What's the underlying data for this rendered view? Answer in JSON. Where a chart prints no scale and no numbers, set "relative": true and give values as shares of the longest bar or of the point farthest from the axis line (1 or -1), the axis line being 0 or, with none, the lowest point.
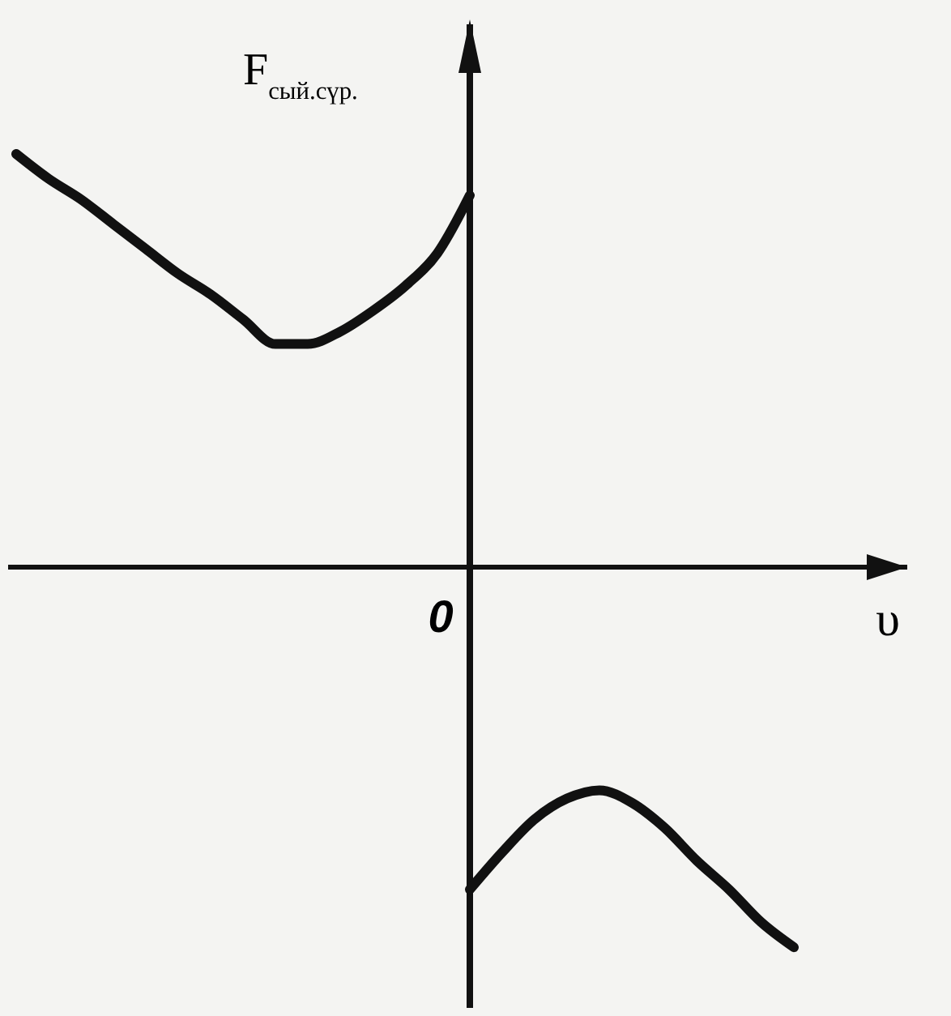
{
  "chart_data": {
    "type": "line",
    "relative": true,
    "annotations": [
      "0"
    ],
    "xlabel": "υ",
    "ylabel": "F$_{сый.сүр.}$",
    "categories": [
      null,
      null,
      null,
      null,
      null,
      null,
      null,
      null,
      null,
      null,
      null,
      null,
      null,
      null,
      null,
      null,
      null,
      null,
      null,
      null,
      null,
      null,
      null,
      null,
      null
    ],
    "series": [
      {
        "color": "#111111",
        "values": [
          1.0,
          0.94,
          0.89,
          0.83,
          0.77,
          0.71,
          0.66,
          0.6,
          0.54,
          0.54,
          0.57,
          0.62,
          0.68,
          0.76,
          0.9,
          null,
          null,
          null,
          null,
          null,
          null,
          null,
          null,
          null,
          null
        ]
      },
      {
        "color": "#111111",
        "values": [
          null,
          null,
          null,
          null,
          null,
          null,
          null,
          null,
          null,
          null,
          null,
          null,
          null,
          null,
          -0.78,
          -0.69,
          -0.61,
          -0.56,
          -0.54,
          -0.57,
          -0.63,
          -0.71,
          -0.78,
          -0.86,
          -0.92
        ]
      }
    ]
  }
}
